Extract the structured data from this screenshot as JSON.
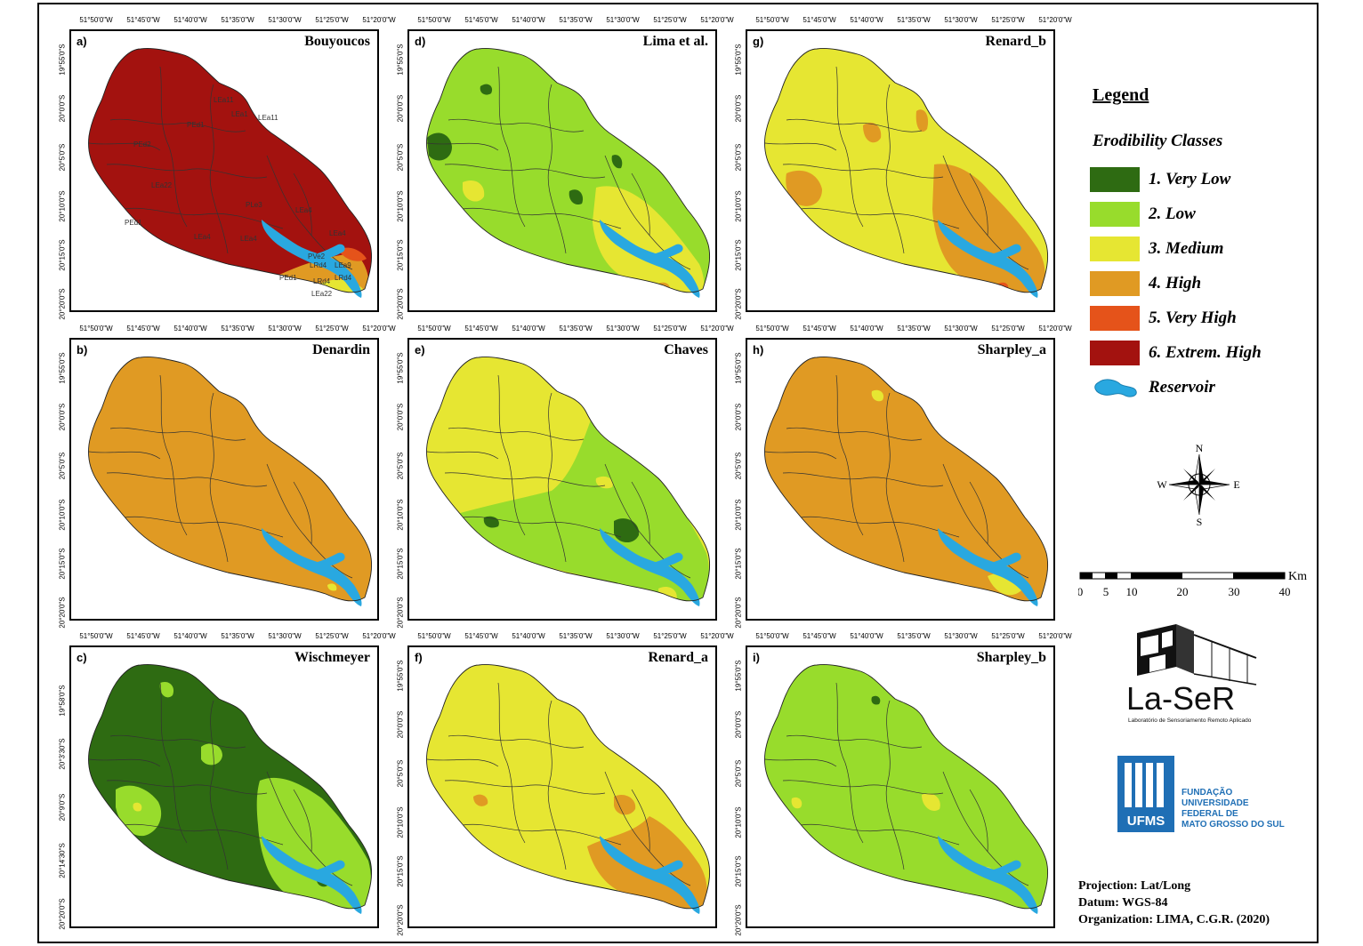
{
  "legend": {
    "title": "Legend",
    "subtitle": "Erodibility Classes",
    "classes": [
      {
        "label": "1. Very Low",
        "color": "#2e6b12"
      },
      {
        "label": "2. Low",
        "color": "#98dc2c"
      },
      {
        "label": "3. Medium",
        "color": "#e6e632"
      },
      {
        "label": "4. High",
        "color": "#e09a23"
      },
      {
        "label": "5. Very High",
        "color": "#e5531a"
      },
      {
        "label": "6. Extrem. High",
        "color": "#a3120f"
      }
    ],
    "reservoir_label": "Reservoir",
    "reservoir_color": "#29a8e0"
  },
  "compass": {
    "n": "N",
    "s": "S",
    "e": "E",
    "w": "W"
  },
  "scale": {
    "unit": "Km",
    "ticks": [
      "0",
      "5",
      "10",
      "20",
      "30",
      "40"
    ]
  },
  "laser": {
    "name": "La-SeR",
    "subtitle": "Laboratório de Sensoriamento Remoto Aplicado"
  },
  "ufms": {
    "abbr": "UFMS",
    "lines": [
      "FUNDAÇÃO",
      "UNIVERSIDADE",
      "FEDERAL DE",
      "MATO GROSSO DO SUL"
    ]
  },
  "info": {
    "projection": "Projection: Lat/Long",
    "datum": "Datum: WGS-84",
    "organization": "Organization: LIMA, C.G.R. (2020)"
  },
  "lon_ticks": [
    "51°50'0\"W",
    "51°45'0\"W",
    "51°40'0\"W",
    "51°35'0\"W",
    "51°30'0\"W",
    "51°25'0\"W",
    "51°20'0\"W"
  ],
  "lat_ticks": [
    "19°55'0\"S",
    "20°0'0\"S",
    "20°5'0\"S",
    "20°10'0\"S",
    "20°15'0\"S",
    "20°20'0\"S"
  ],
  "lat_ticks_c": [
    "19°58'0\"S",
    "20°3'30\"S",
    "20°9'0\"S",
    "20°14'30\"S",
    "20°20'0\"S"
  ],
  "panels": [
    {
      "letter": "a)",
      "title": "Bouyoucos",
      "base": "#a3120f",
      "soil_units": [
        "LEa11",
        "LEa11",
        "PEd1",
        "LEa1",
        "PEd2",
        "LEa22",
        "PLe3",
        "LEa4",
        "LEa4",
        "PEd1",
        "LEa4",
        "LEa4",
        "PVe2",
        "LRd4",
        "LEa9",
        "PEd1",
        "LRd4",
        "LRd4",
        "LEa22"
      ]
    },
    {
      "letter": "b)",
      "title": "Denardin",
      "base": "#e09a23"
    },
    {
      "letter": "c)",
      "title": "Wischmeyer",
      "base": "#2e6b12"
    },
    {
      "letter": "d)",
      "title": "Lima et al.",
      "base": "#98dc2c"
    },
    {
      "letter": "e)",
      "title": "Chaves",
      "base": "#e6e632"
    },
    {
      "letter": "f)",
      "title": "Renard_a",
      "base": "#e6e632"
    },
    {
      "letter": "g)",
      "title": "Renard_b",
      "base": "#e6e632"
    },
    {
      "letter": "h)",
      "title": "Sharpley_a",
      "base": "#e09a23"
    },
    {
      "letter": "i)",
      "title": "Sharpley_b",
      "base": "#98dc2c"
    }
  ]
}
